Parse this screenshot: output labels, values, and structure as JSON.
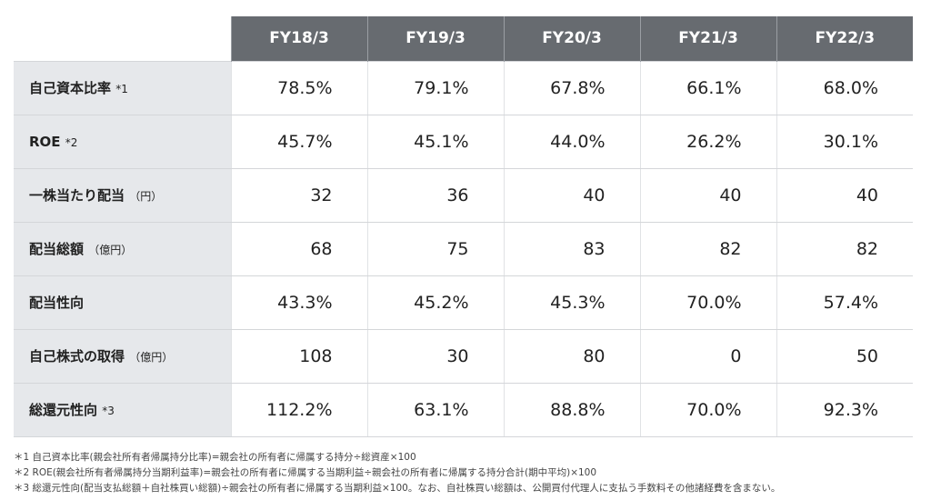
{
  "headers": [
    "FY18/3",
    "FY19/3",
    "FY20/3",
    "FY21/3",
    "FY22/3"
  ],
  "rows": [
    {
      "label": "自己資本比率",
      "note": "*1",
      "values": [
        "78.5%",
        "79.1%",
        "67.8%",
        "66.1%",
        "68.0%"
      ]
    },
    {
      "label": "ROE",
      "note": "*2",
      "values": [
        "45.7%",
        "45.1%",
        "44.0%",
        "26.2%",
        "30.1%"
      ]
    },
    {
      "label": "一株当たり配当",
      "note": "（円）",
      "values": [
        "32",
        "36",
        "40",
        "40",
        "40"
      ]
    },
    {
      "label": "配当総額",
      "note": "（億円）",
      "values": [
        "68",
        "75",
        "83",
        "82",
        "82"
      ]
    },
    {
      "label": "配当性向",
      "note": "",
      "values": [
        "43.3%",
        "45.2%",
        "45.3%",
        "70.0%",
        "57.4%"
      ]
    },
    {
      "label": "自己株式の取得",
      "note": "（億円）",
      "values": [
        "108",
        "30",
        "80",
        "0",
        "50"
      ]
    },
    {
      "label": "総還元性向",
      "note": "*3",
      "values": [
        "112.2%",
        "63.1%",
        "88.8%",
        "70.0%",
        "92.3%"
      ]
    }
  ],
  "footnotes": [
    "＊1 自己資本比率(親会社所有者帰属持分比率)=親会社の所有者に帰属する持分÷総資産×100",
    "＊2 ROE(親会社所有者帰属持分当期利益率)=親会社の所有者に帰属する当期利益÷親会社の所有者に帰属する持分合計(期中平均)×100",
    "＊3 総還元性向(配当支払総額＋自社株買い総額)÷親会社の所有者に帰属する当期利益×100。なお、自社株買い総額は、公開買付代理人に支払う手数料その他諸経費を含まない。"
  ]
}
